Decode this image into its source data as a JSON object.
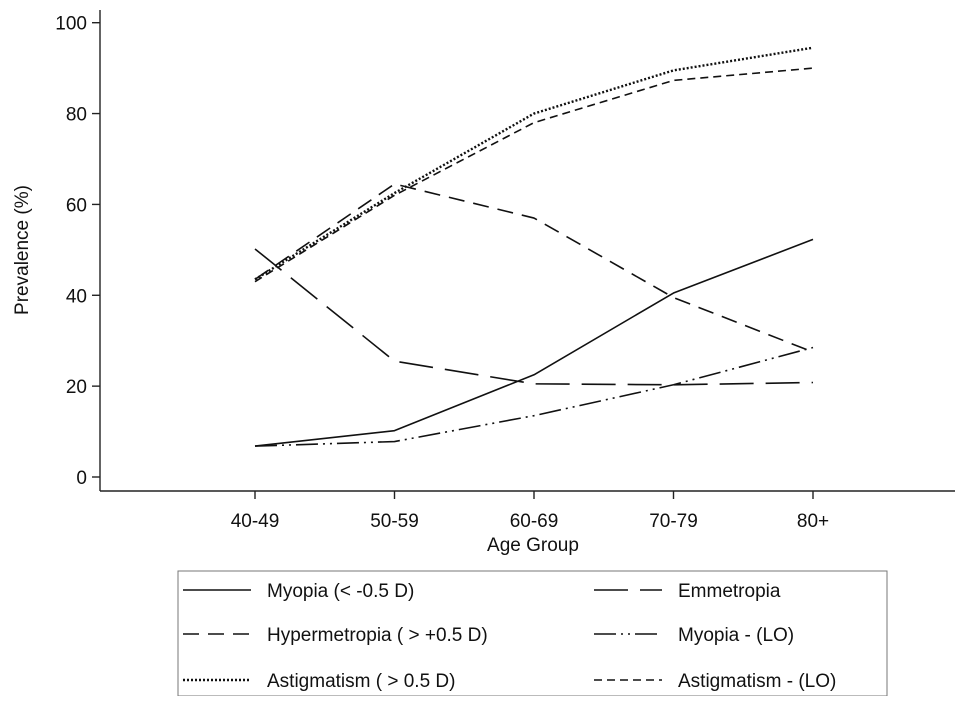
{
  "chart_data": {
    "type": "line",
    "xlabel": "Age Group",
    "ylabel": "Prevalence (%)",
    "categories": [
      "40-49",
      "50-59",
      "60-69",
      "70-79",
      "80+"
    ],
    "ylim": [
      0,
      100
    ],
    "yticks": [
      0,
      20,
      40,
      60,
      80,
      100
    ],
    "grid": false,
    "legend_position": "bottom",
    "series": [
      {
        "name": "Myopia (< -0.5 D)",
        "style": "solid",
        "color": "#111111",
        "values": [
          6.8,
          10.2,
          22.5,
          40.5,
          52.3
        ]
      },
      {
        "name": "Emmetropia",
        "style": "longdash",
        "color": "#111111",
        "values": [
          50.2,
          25.5,
          20.5,
          20.3,
          20.8
        ]
      },
      {
        "name": "Hypermetropia ( > +0.5 D)",
        "style": "dash",
        "color": "#111111",
        "values": [
          43.5,
          64.5,
          57.0,
          39.5,
          27.5
        ]
      },
      {
        "name": "Myopia - (LO)",
        "style": "dashdotdot",
        "color": "#111111",
        "values": [
          6.8,
          7.8,
          13.5,
          20.3,
          28.5
        ]
      },
      {
        "name": "Astigmatism ( > 0.5 D)",
        "style": "dot",
        "color": "#111111",
        "values": [
          43.5,
          62.5,
          80.0,
          89.5,
          94.5
        ]
      },
      {
        "name": "Astigmatism - (LO)",
        "style": "shortdash",
        "color": "#111111",
        "values": [
          43.0,
          62.0,
          78.0,
          87.3,
          90.0
        ]
      }
    ]
  }
}
